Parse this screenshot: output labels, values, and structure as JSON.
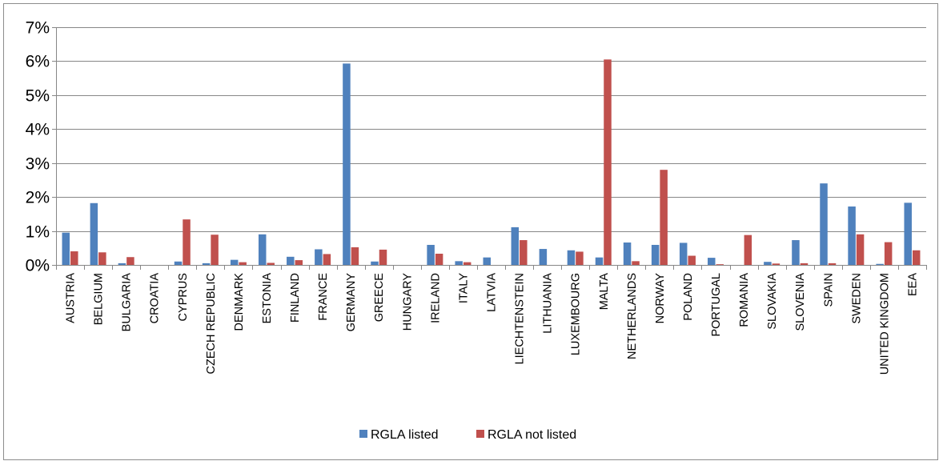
{
  "chart_data": {
    "type": "bar",
    "categories": [
      "AUSTRIA",
      "BELGIUM",
      "BULGARIA",
      "CROATIA",
      "CYPRUS",
      "CZECH REPUBLIC",
      "DENMARK",
      "ESTONIA",
      "FINLAND",
      "FRANCE",
      "GERMANY",
      "GREECE",
      "HUNGARY",
      "IRELAND",
      "ITALY",
      "LATVIA",
      "LIECHTENSTEIN",
      "LITHUANIA",
      "LUXEMBOURG",
      "MALTA",
      "NETHERLANDS",
      "NORWAY",
      "POLAND",
      "PORTUGAL",
      "ROMANIA",
      "SLOVAKIA",
      "SLOVENIA",
      "SPAIN",
      "SWEDEN",
      "UNITED KINGDOM",
      "EEA"
    ],
    "series": [
      {
        "name": "RGLA listed",
        "color": "#4f81bd",
        "values": [
          0.0095,
          0.0182,
          0.0005,
          0.0,
          0.001,
          0.0005,
          0.0015,
          0.009,
          0.0024,
          0.0046,
          0.0593,
          0.001,
          0.0,
          0.0059,
          0.0011,
          0.0022,
          0.0111,
          0.0047,
          0.0043,
          0.0022,
          0.0066,
          0.0059,
          0.0065,
          0.0021,
          0.0,
          0.0009,
          0.0073,
          0.024,
          0.0172,
          0.0003,
          0.0183
        ]
      },
      {
        "name": "RGLA not listed",
        "color": "#c0504d",
        "values": [
          0.004,
          0.0037,
          0.0023,
          0.0,
          0.0134,
          0.0089,
          0.0008,
          0.0006,
          0.0014,
          0.0032,
          0.0052,
          0.0045,
          0.0,
          0.0033,
          0.0008,
          0.0,
          0.0073,
          0.0,
          0.0039,
          0.0605,
          0.0011,
          0.028,
          0.0027,
          0.0002,
          0.0088,
          0.0004,
          0.0005,
          0.0005,
          0.009,
          0.0067,
          0.0043
        ]
      }
    ],
    "yticks": [
      "0%",
      "1%",
      "2%",
      "3%",
      "4%",
      "5%",
      "6%",
      "7%"
    ],
    "ylim": [
      0,
      0.07
    ],
    "grid": true,
    "legend_position": "bottom"
  }
}
